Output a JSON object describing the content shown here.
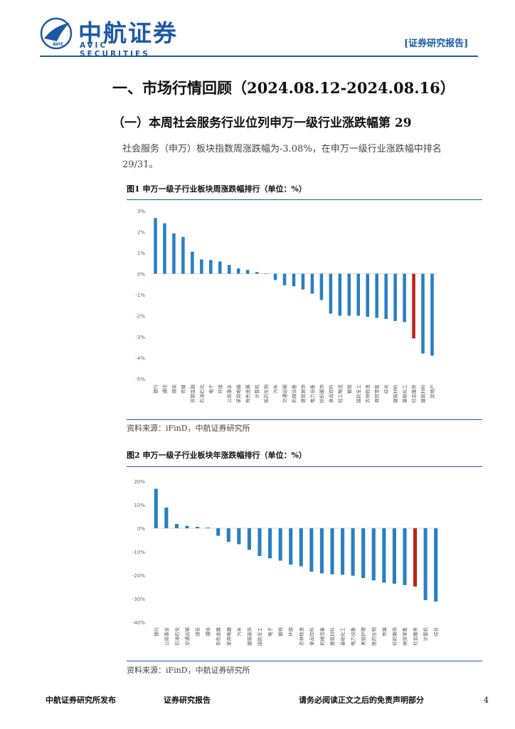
{
  "header": {
    "logo_cn": "中航证券",
    "logo_en": "AVIC SECURITIES",
    "emblem_text": "AVIC",
    "report_tag": "[证券研究报告]"
  },
  "section": {
    "title": "一、市场行情回顾（2024.08.12-2024.08.16）",
    "subtitle": "（一）本周社会服务行业位列申万一级行业涨跌幅第 29",
    "paragraph": "社会服务（申万）板块指数周涨跌幅为-3.08%，在申万一级行业涨跌幅中排名",
    "paragraph_cont": "29/31。"
  },
  "figures": {
    "fig1_title": "图1  申万一级子行业板块周涨跌幅排行（单位：%）",
    "fig1_source": "资料来源：iFinD，中航证券研究所",
    "fig2_title": "图2  申万一级子行业板块年涨跌幅排行（单位：%）",
    "fig2_source": "资料来源：iFinD，中航证券研究所"
  },
  "footer": {
    "left": "中航证券研究所发布",
    "middle": "证券研究报告",
    "right": "请务必阅读正文之后的免责声明部分",
    "page": "4"
  },
  "colors": {
    "brand_blue": "#1d5aa6",
    "bar_blue": "#2a7fc4",
    "bar_highlight": "#c0211c"
  },
  "chart_data": [
    {
      "type": "bar",
      "categories": [
        "银行",
        "通信",
        "煤炭",
        "传媒",
        "非银金融",
        "石油石化",
        "电子",
        "环保",
        "公用事业",
        "家用电器",
        "有色金属",
        "计算机",
        "医药生物",
        "汽车",
        "交通运输",
        "机械设备",
        "建筑装饰",
        "电力设备",
        "纺织服饰",
        "食品饮料",
        "轻工制造",
        "钢铁",
        "国防军工",
        "农林牧渔",
        "商贸零售",
        "综合",
        "建筑材料",
        "基础化工",
        "社会服务",
        "建筑材料",
        "房地产"
      ],
      "values": [
        2.65,
        2.4,
        1.92,
        1.75,
        1.05,
        0.68,
        0.65,
        0.58,
        0.42,
        0.25,
        0.18,
        0.08,
        0.02,
        -0.3,
        -0.55,
        -0.6,
        -0.75,
        -0.95,
        -1.25,
        -1.9,
        -2.0,
        -2.0,
        -2.0,
        -2.05,
        -2.1,
        -2.15,
        -2.25,
        -2.3,
        -3.08,
        -3.8,
        -3.9
      ],
      "highlight_index": 28,
      "yticks": [
        "3%",
        "2%",
        "1%",
        "0%",
        "-1%",
        "-2%",
        "-3%",
        "-4%",
        "-5%"
      ],
      "ylim": [
        -5,
        3
      ]
    },
    {
      "type": "bar",
      "categories": [
        "银行",
        "公用事业",
        "石油石化",
        "交通运输",
        "煤炭",
        "通信",
        "有色金属",
        "家用电器",
        "汽车",
        "建筑装饰",
        "国防军工",
        "电子",
        "钢铁",
        "环保",
        "农林牧渔",
        "食品饮料",
        "机械设备",
        "建筑材料",
        "基础化工",
        "电力设备",
        "美容护理",
        "医药生物",
        "传媒",
        "纺织服饰",
        "商贸零售",
        "社会服务",
        "计算机",
        "综合"
      ],
      "values": [
        16.8,
        8.8,
        1.8,
        1.0,
        0.6,
        0.3,
        -3.2,
        -5.8,
        -6.8,
        -9.2,
        -11.8,
        -12.8,
        -13.8,
        -15.5,
        -16.2,
        -18.5,
        -19.2,
        -19.6,
        -19.8,
        -20.2,
        -21.2,
        -22.2,
        -23.2,
        -23.6,
        -24.2,
        -24.8,
        -30.6,
        -31.2
      ],
      "highlight_index": 25,
      "yticks": [
        "20%",
        "10%",
        "0%",
        "-10%",
        "-20%",
        "-30%",
        "-40%"
      ],
      "ylim": [
        -40,
        20
      ]
    }
  ]
}
